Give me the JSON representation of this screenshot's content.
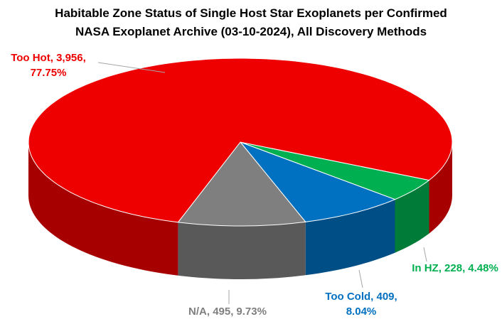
{
  "chart_data": {
    "type": "pie",
    "title": [
      "Habitable Zone Status of Single Host Star Exoplanets per Confirmed",
      "NASA Exoplanet Archive (03-10-2024), All Discovery Methods"
    ],
    "categories": [
      "In HZ",
      "Too Cold",
      "N/A",
      "Too Hot"
    ],
    "values": [
      228,
      409,
      495,
      3956
    ],
    "value_labels": [
      "228",
      "409",
      "495",
      "3,956"
    ],
    "percents": [
      4.48,
      8.04,
      9.73,
      77.75
    ],
    "percent_labels": [
      "4.48%",
      "8.04%",
      "9.73%",
      "77.75%"
    ],
    "colors": [
      "#00b050",
      "#0070c0",
      "#7f7f7f",
      "#ee0000"
    ],
    "three_d": true
  }
}
